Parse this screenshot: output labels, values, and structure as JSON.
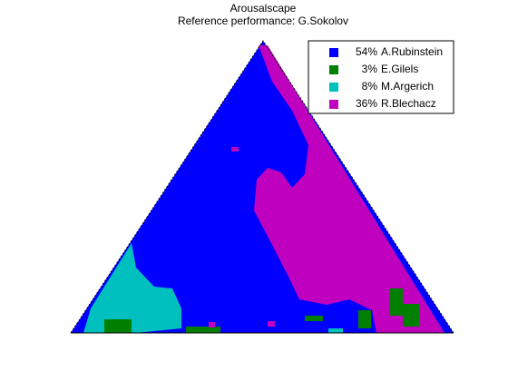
{
  "chart_data": {
    "type": "ternary-map",
    "title": "Arousalscape",
    "subtitle": "Reference performance: G.Sokolov",
    "categories": [
      "A.Rubinstein",
      "E.Gilels",
      "M.Argerich",
      "R.Blechacz"
    ],
    "values": [
      54,
      3,
      8,
      36
    ],
    "value_labels": [
      "54%",
      "3%",
      "8%",
      "36%"
    ],
    "colors": [
      "#0000ff",
      "#007f00",
      "#00bfbf",
      "#bf00bf"
    ]
  }
}
